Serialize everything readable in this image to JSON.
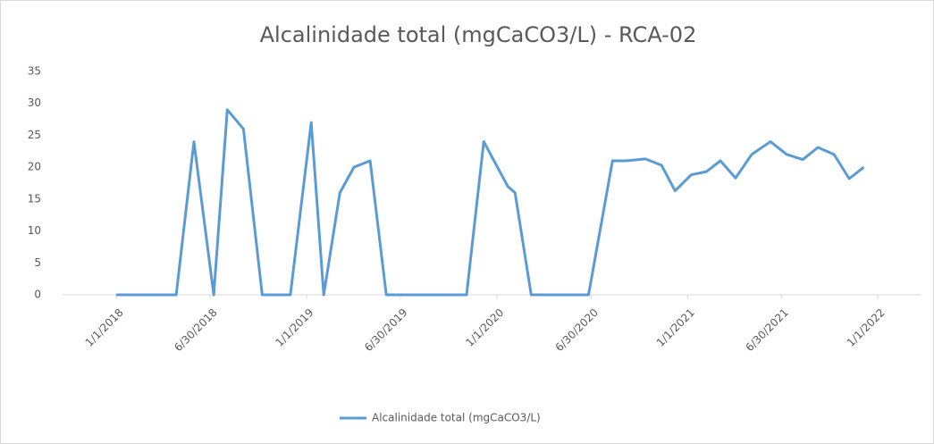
{
  "chart_data": {
    "type": "line",
    "title": "Alcalinidade total (mgCaCO3/L) - RCA-02",
    "x": [
      "2018-01-01",
      "2018-04-26",
      "2018-05-30",
      "2018-07-07",
      "2018-08-02",
      "2018-09-02",
      "2018-10-08",
      "2018-12-01",
      "2019-01-10",
      "2019-02-03",
      "2019-03-06",
      "2019-04-02",
      "2019-05-03",
      "2019-06-03",
      "2019-11-04",
      "2019-12-07",
      "2020-01-22",
      "2020-02-05",
      "2020-03-07",
      "2020-06-25",
      "2020-08-10",
      "2020-09-05",
      "2020-10-12",
      "2020-11-12",
      "2020-12-08",
      "2021-01-08",
      "2021-02-06",
      "2021-03-05",
      "2021-04-03",
      "2021-05-04",
      "2021-06-09",
      "2021-07-10",
      "2021-08-10",
      "2021-09-08",
      "2021-10-09",
      "2021-11-07",
      "2021-12-05"
    ],
    "series": [
      {
        "name": "Alcalinidade total (mgCaCO3/L)",
        "color": "#5b9bd5",
        "values": [
          0,
          0,
          24,
          0,
          29,
          26,
          0,
          0,
          27,
          0,
          16,
          20,
          21,
          0,
          0,
          24,
          17,
          16,
          0,
          0,
          21,
          21,
          21.3,
          20.3,
          16.3,
          18.8,
          19.3,
          21,
          18.3,
          22,
          24,
          22,
          21.2,
          23.1,
          22,
          18.2,
          20
        ]
      }
    ],
    "xlim": [
      "2017-09-20",
      "2022-03-24"
    ],
    "xticks": [
      {
        "value": "2018-01-01",
        "label": "1/1/2018"
      },
      {
        "value": "2018-06-30",
        "label": "6/30/2018"
      },
      {
        "value": "2019-01-01",
        "label": "1/1/2019"
      },
      {
        "value": "2019-06-30",
        "label": "6/30/2019"
      },
      {
        "value": "2020-01-01",
        "label": "1/1/2020"
      },
      {
        "value": "2020-06-30",
        "label": "6/30/2020"
      },
      {
        "value": "2021-01-01",
        "label": "1/1/2021"
      },
      {
        "value": "2021-06-30",
        "label": "6/30/2021"
      },
      {
        "value": "2022-01-01",
        "label": "1/1/2022"
      }
    ],
    "ylim": [
      0,
      35
    ],
    "yticks": [
      0,
      5,
      10,
      15,
      20,
      25,
      30,
      35
    ],
    "grid": false,
    "legend": "bottom"
  }
}
